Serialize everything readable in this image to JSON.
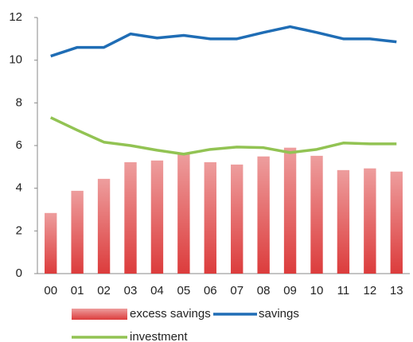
{
  "chart_data": {
    "type": "bar-line",
    "categories": [
      "00",
      "01",
      "02",
      "03",
      "04",
      "05",
      "06",
      "07",
      "08",
      "09",
      "10",
      "11",
      "12",
      "13"
    ],
    "series": [
      {
        "name": "excess savings",
        "type": "bar",
        "color": "#dc3c3c",
        "values": [
          2.84,
          3.88,
          4.44,
          5.22,
          5.3,
          5.63,
          5.22,
          5.11,
          5.49,
          5.9,
          5.52,
          4.85,
          4.93,
          4.78
        ]
      },
      {
        "name": "savings",
        "type": "line",
        "color": "#1f6db5",
        "values": [
          10.19,
          10.6,
          10.6,
          11.23,
          11.04,
          11.16,
          11.0,
          11.0,
          11.3,
          11.57,
          11.3,
          11.0,
          11.0,
          10.86
        ]
      },
      {
        "name": "investment",
        "type": "line",
        "color": "#92c353",
        "values": [
          7.31,
          6.72,
          6.16,
          6.0,
          5.78,
          5.6,
          5.82,
          5.93,
          5.9,
          5.67,
          5.82,
          6.12,
          6.08,
          6.08
        ]
      }
    ],
    "ylim": [
      0,
      12
    ],
    "yticks": [
      0,
      2,
      4,
      6,
      8,
      10,
      12
    ],
    "grid": false
  }
}
